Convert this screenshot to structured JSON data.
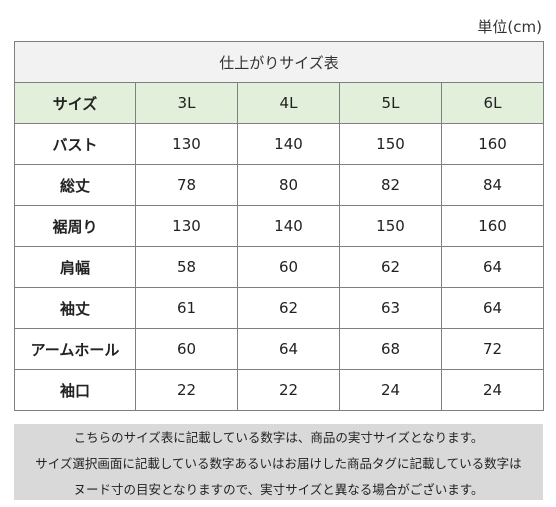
{
  "unit_label": "単位(cm)",
  "table": {
    "title": "仕上がりサイズ表",
    "header": {
      "label": "サイズ",
      "columns": [
        "3L",
        "4L",
        "5L",
        "6L"
      ]
    },
    "rows": [
      {
        "label": "バスト",
        "values": [
          "130",
          "140",
          "150",
          "160"
        ]
      },
      {
        "label": "総丈",
        "values": [
          "78",
          "80",
          "82",
          "84"
        ]
      },
      {
        "label": "裾周り",
        "values": [
          "130",
          "140",
          "150",
          "160"
        ]
      },
      {
        "label": "肩幅",
        "values": [
          "58",
          "60",
          "62",
          "64"
        ]
      },
      {
        "label": "袖丈",
        "values": [
          "61",
          "62",
          "63",
          "64"
        ]
      },
      {
        "label": "アームホール",
        "values": [
          "60",
          "64",
          "68",
          "72"
        ]
      },
      {
        "label": "袖口",
        "values": [
          "22",
          "22",
          "24",
          "24"
        ]
      }
    ]
  },
  "note": {
    "lines": [
      "こちらのサイズ表に記載している数字は、商品の実寸サイズとなります。",
      "サイズ選択画面に記載している数字あるいはお届けした商品タグに記載している数字は",
      "ヌード寸の目安となりますので、実寸サイズと異なる場合がございます。"
    ]
  },
  "colors": {
    "header_bg": "#e2efda",
    "title_bg": "#f2f2f2",
    "note_bg": "#d9d9d9",
    "border": "#7f7f7f"
  }
}
